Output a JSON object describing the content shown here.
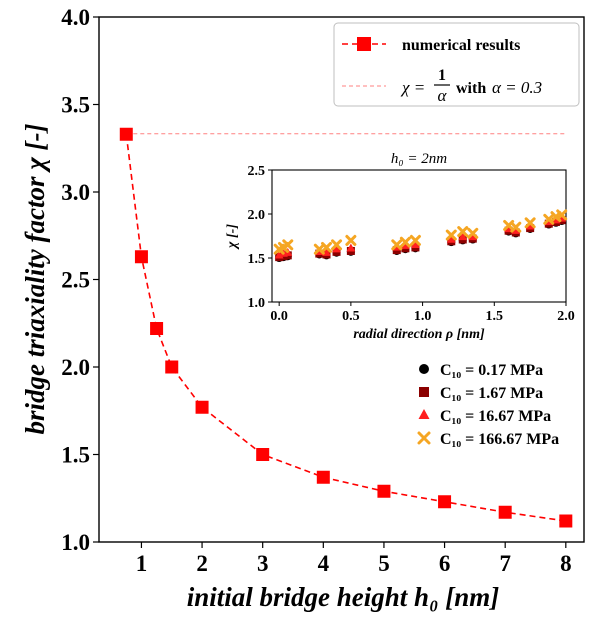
{
  "chart_data": [
    {
      "type": "line",
      "title": "",
      "xlabel": "initial bridge height h₀ [nm]",
      "ylabel": "bridge triaxiality factor χ [-]",
      "xlim": [
        0.3,
        8.3
      ],
      "ylim": [
        1.0,
        4.0
      ],
      "xticks": [
        "1",
        "2",
        "3",
        "4",
        "5",
        "6",
        "7",
        "8"
      ],
      "yticks": [
        "1.0",
        "1.5",
        "2.0",
        "2.5",
        "3.0",
        "3.5",
        "4.0"
      ],
      "grid": false,
      "legend_position": "top-right",
      "series": [
        {
          "name": "numerical results",
          "color": "#ff0000",
          "marker": "square",
          "linestyle": "dashed",
          "x": [
            0.75,
            1.0,
            1.25,
            1.5,
            2.0,
            3.0,
            4.0,
            5.0,
            6.0,
            7.0,
            8.0
          ],
          "y": [
            3.33,
            2.63,
            2.22,
            2.0,
            1.77,
            1.5,
            1.37,
            1.29,
            1.23,
            1.17,
            1.12
          ]
        },
        {
          "name_math": "χ = 1/α",
          "name_suffix": "with",
          "name_param": "α = 0.3",
          "color": "#ff8080",
          "linestyle": "dashed",
          "y_constant": 3.333
        }
      ]
    },
    {
      "type": "scatter",
      "title": "h₀ = 2nm",
      "xlabel": "radial direction ρ [nm]",
      "ylabel": "χ [-]",
      "xlim": [
        -0.05,
        2.0
      ],
      "ylim": [
        1.0,
        2.5
      ],
      "xticks": [
        "0.0",
        "0.5",
        "1.0",
        "1.5",
        "2.0"
      ],
      "yticks": [
        "1.0",
        "1.5",
        "2.0",
        "2.5"
      ],
      "legend_position": "lower-right",
      "series": [
        {
          "name": "C₁₀ = 0.17 MPa",
          "color": "#000000",
          "marker": "circle",
          "x": [
            0.0,
            0.03,
            0.06,
            0.28,
            0.33,
            0.4,
            0.5,
            0.82,
            0.88,
            0.95,
            1.2,
            1.28,
            1.35,
            1.6,
            1.65,
            1.75,
            1.88,
            1.93,
            1.97
          ],
          "y": [
            1.5,
            1.51,
            1.52,
            1.54,
            1.53,
            1.56,
            1.57,
            1.58,
            1.6,
            1.61,
            1.68,
            1.7,
            1.71,
            1.8,
            1.78,
            1.83,
            1.88,
            1.9,
            1.92
          ]
        },
        {
          "name": "C₁₀ = 1.67 MPa",
          "color": "#8b0000",
          "marker": "square",
          "x": [
            0.0,
            0.03,
            0.06,
            0.28,
            0.33,
            0.4,
            0.5,
            0.82,
            0.88,
            0.95,
            1.2,
            1.28,
            1.35,
            1.6,
            1.65,
            1.75,
            1.88,
            1.93,
            1.97
          ],
          "y": [
            1.51,
            1.52,
            1.53,
            1.55,
            1.54,
            1.57,
            1.58,
            1.59,
            1.61,
            1.62,
            1.69,
            1.71,
            1.72,
            1.81,
            1.79,
            1.84,
            1.89,
            1.91,
            1.93
          ]
        },
        {
          "name": "C₁₀ = 16.67 MPa",
          "color": "#ff2020",
          "marker": "triangle",
          "x": [
            0.0,
            0.03,
            0.06,
            0.28,
            0.33,
            0.4,
            0.5,
            0.82,
            0.88,
            0.95,
            1.2,
            1.28,
            1.35,
            1.6,
            1.65,
            1.75,
            1.88,
            1.93,
            1.97
          ],
          "y": [
            1.53,
            1.55,
            1.56,
            1.57,
            1.56,
            1.6,
            1.61,
            1.62,
            1.64,
            1.65,
            1.71,
            1.74,
            1.74,
            1.83,
            1.81,
            1.86,
            1.91,
            1.93,
            1.95
          ]
        },
        {
          "name": "C₁₀ = 166.67 MPa",
          "color": "#f5a623",
          "marker": "x",
          "x": [
            0.0,
            0.03,
            0.06,
            0.28,
            0.33,
            0.4,
            0.5,
            0.82,
            0.88,
            0.95,
            1.2,
            1.28,
            1.35,
            1.6,
            1.65,
            1.75,
            1.88,
            1.93,
            1.97
          ],
          "y": [
            1.6,
            1.62,
            1.65,
            1.6,
            1.62,
            1.65,
            1.7,
            1.65,
            1.68,
            1.7,
            1.76,
            1.8,
            1.78,
            1.87,
            1.85,
            1.9,
            1.94,
            1.97,
            1.99
          ]
        }
      ]
    }
  ]
}
